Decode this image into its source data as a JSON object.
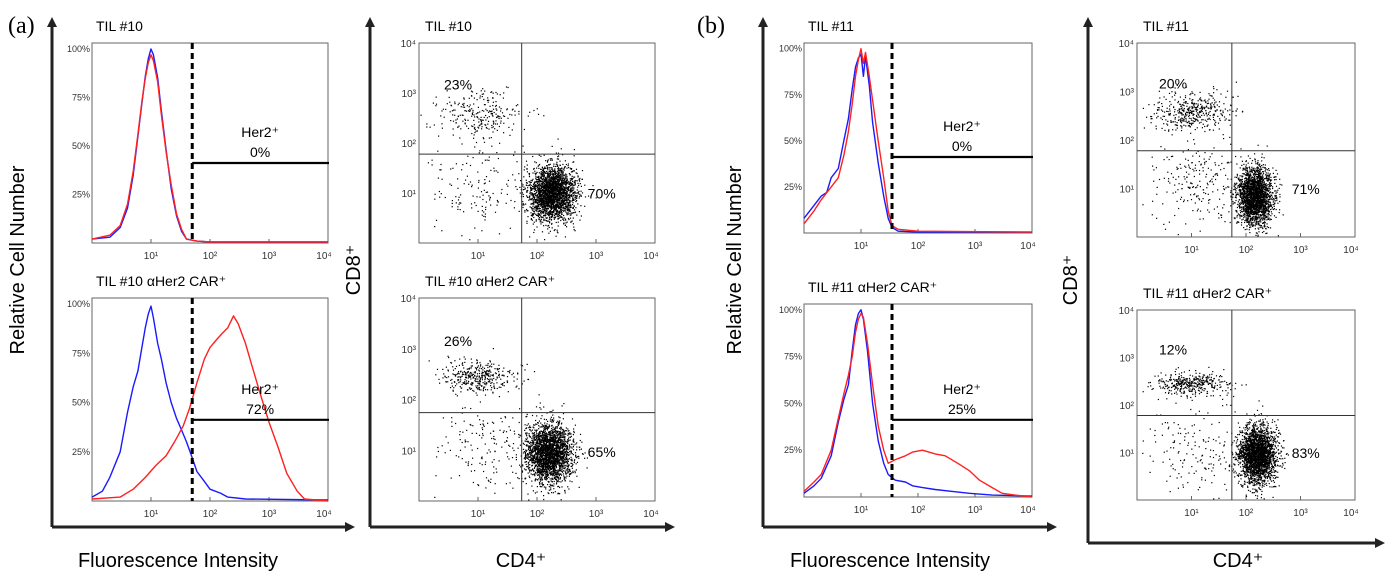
{
  "panel_labels": [
    "(a)",
    "(b)"
  ],
  "axes": {
    "hist_ylabel": "Relative Cell Number",
    "hist_xlabel": "Fluorescence Intensity",
    "dot_ylabel": "CD8⁺",
    "dot_xlabel": "CD4⁺"
  },
  "colors": {
    "control": "#1a1aff",
    "car": "#ff2020",
    "dots": "#000000",
    "gate": "#000000"
  },
  "chart_data": [
    {
      "id": "a-hist-top",
      "type": "line",
      "title": "TIL #10",
      "xscale": "log",
      "xlim": [
        1,
        10000
      ],
      "xticks": [
        "10¹",
        "10²",
        "10³",
        "10⁴"
      ],
      "yticks": [
        "25%",
        "50%",
        "75%",
        "100%"
      ],
      "gate": {
        "label": "Her2⁺",
        "value": "0%",
        "threshold": 50
      },
      "series": [
        {
          "color": "#1a1aff",
          "points": [
            [
              1,
              0.02
            ],
            [
              2,
              0.03
            ],
            [
              3,
              0.08
            ],
            [
              4,
              0.18
            ],
            [
              5,
              0.35
            ],
            [
              6,
              0.55
            ],
            [
              7,
              0.72
            ],
            [
              8,
              0.86
            ],
            [
              9,
              0.95
            ],
            [
              10,
              1.0
            ],
            [
              11,
              0.97
            ],
            [
              13,
              0.85
            ],
            [
              15,
              0.68
            ],
            [
              18,
              0.48
            ],
            [
              22,
              0.28
            ],
            [
              27,
              0.14
            ],
            [
              33,
              0.06
            ],
            [
              40,
              0.02
            ],
            [
              60,
              0.01
            ],
            [
              100,
              0.005
            ],
            [
              10000,
              0.005
            ]
          ]
        },
        {
          "color": "#ff2020",
          "points": [
            [
              1,
              0.02
            ],
            [
              2,
              0.04
            ],
            [
              3,
              0.09
            ],
            [
              4,
              0.2
            ],
            [
              5,
              0.37
            ],
            [
              6,
              0.56
            ],
            [
              7,
              0.73
            ],
            [
              8,
              0.85
            ],
            [
              9,
              0.93
            ],
            [
              10,
              0.97
            ],
            [
              11,
              0.94
            ],
            [
              13,
              0.83
            ],
            [
              15,
              0.66
            ],
            [
              18,
              0.47
            ],
            [
              22,
              0.3
            ],
            [
              27,
              0.15
            ],
            [
              33,
              0.07
            ],
            [
              40,
              0.02
            ],
            [
              60,
              0.01
            ],
            [
              100,
              0.005
            ],
            [
              10000,
              0.005
            ]
          ]
        }
      ]
    },
    {
      "id": "a-hist-bottom",
      "type": "line",
      "title": "TIL #10 αHer2 CAR⁺",
      "xscale": "log",
      "xlim": [
        1,
        10000
      ],
      "xticks": [
        "10¹",
        "10²",
        "10³",
        "10⁴"
      ],
      "yticks": [
        "25%",
        "50%",
        "75%",
        "100%"
      ],
      "gate": {
        "label": "Her2⁺",
        "value": "72%",
        "threshold": 50
      },
      "series": [
        {
          "color": "#1a1aff",
          "points": [
            [
              1,
              0.02
            ],
            [
              1.5,
              0.05
            ],
            [
              2,
              0.12
            ],
            [
              3,
              0.25
            ],
            [
              4,
              0.45
            ],
            [
              5,
              0.58
            ],
            [
              6,
              0.66
            ],
            [
              7,
              0.78
            ],
            [
              8,
              0.88
            ],
            [
              9,
              0.95
            ],
            [
              10,
              0.99
            ],
            [
              11,
              0.93
            ],
            [
              13,
              0.8
            ],
            [
              15,
              0.72
            ],
            [
              18,
              0.6
            ],
            [
              22,
              0.5
            ],
            [
              27,
              0.42
            ],
            [
              33,
              0.36
            ],
            [
              40,
              0.3
            ],
            [
              50,
              0.22
            ],
            [
              60,
              0.15
            ],
            [
              80,
              0.1
            ],
            [
              100,
              0.06
            ],
            [
              150,
              0.04
            ],
            [
              200,
              0.02
            ],
            [
              400,
              0.01
            ],
            [
              10000,
              0.005
            ]
          ]
        },
        {
          "color": "#ff2020",
          "points": [
            [
              1,
              0.01
            ],
            [
              3,
              0.02
            ],
            [
              5,
              0.06
            ],
            [
              8,
              0.12
            ],
            [
              12,
              0.18
            ],
            [
              18,
              0.23
            ],
            [
              25,
              0.3
            ],
            [
              35,
              0.38
            ],
            [
              45,
              0.47
            ],
            [
              60,
              0.6
            ],
            [
              80,
              0.72
            ],
            [
              100,
              0.78
            ],
            [
              130,
              0.82
            ],
            [
              160,
              0.85
            ],
            [
              200,
              0.88
            ],
            [
              250,
              0.94
            ],
            [
              300,
              0.9
            ],
            [
              400,
              0.8
            ],
            [
              500,
              0.7
            ],
            [
              700,
              0.55
            ],
            [
              1000,
              0.4
            ],
            [
              1400,
              0.28
            ],
            [
              2000,
              0.14
            ],
            [
              3000,
              0.05
            ],
            [
              4000,
              0.01
            ],
            [
              10000,
              0.0
            ]
          ]
        }
      ]
    },
    {
      "id": "a-dot-top",
      "type": "scatter",
      "title": "TIL #10",
      "xscale": "log",
      "yscale": "log",
      "xlim": [
        1,
        10000
      ],
      "ylim": [
        1,
        10000
      ],
      "xticks": [
        "10¹",
        "10²",
        "10³",
        "10⁴"
      ],
      "yticks": [
        "10¹",
        "10²",
        "10³",
        "10⁴"
      ],
      "gate": [
        55,
        60
      ],
      "quadrants": {
        "upper_left": "23%",
        "lower_right": "70%"
      },
      "clusters": [
        {
          "n": 260,
          "cx": 1.0,
          "cy": 2.55,
          "sx": 0.38,
          "sy": 0.25
        },
        {
          "n": 2400,
          "cx": 2.25,
          "cy": 1.0,
          "sx": 0.2,
          "sy": 0.28
        },
        {
          "n": 160,
          "cx": 1.1,
          "cy": 1.1,
          "sx": 0.45,
          "sy": 0.45
        }
      ]
    },
    {
      "id": "a-dot-bottom",
      "type": "scatter",
      "title": "TIL #10 αHer2 CAR⁺",
      "xscale": "log",
      "yscale": "log",
      "xlim": [
        1,
        10000
      ],
      "ylim": [
        1,
        10000
      ],
      "xticks": [
        "10¹",
        "10²",
        "10³",
        "10⁴"
      ],
      "yticks": [
        "10¹",
        "10²",
        "10³",
        "10⁴"
      ],
      "gate": [
        55,
        55
      ],
      "quadrants": {
        "upper_left": "26%",
        "lower_right": "65%"
      },
      "clusters": [
        {
          "n": 380,
          "cx": 1.0,
          "cy": 2.45,
          "sx": 0.32,
          "sy": 0.16
        },
        {
          "n": 2400,
          "cx": 2.2,
          "cy": 0.95,
          "sx": 0.2,
          "sy": 0.3
        },
        {
          "n": 170,
          "cx": 1.15,
          "cy": 1.0,
          "sx": 0.45,
          "sy": 0.5
        }
      ]
    },
    {
      "id": "b-hist-top",
      "type": "line",
      "title": "TIL #11",
      "xscale": "log",
      "xlim": [
        1,
        10000
      ],
      "xticks": [
        "10¹",
        "10²",
        "10³",
        "10⁴"
      ],
      "yticks": [
        "25%",
        "50%",
        "75%",
        "100%"
      ],
      "gate": {
        "label": "Her2⁺",
        "value": "0%",
        "threshold": 35
      },
      "series": [
        {
          "color": "#1a1aff",
          "points": [
            [
              1,
              0.08
            ],
            [
              1.5,
              0.15
            ],
            [
              2,
              0.2
            ],
            [
              2.5,
              0.22
            ],
            [
              3,
              0.3
            ],
            [
              4,
              0.35
            ],
            [
              5,
              0.5
            ],
            [
              6,
              0.62
            ],
            [
              7,
              0.78
            ],
            [
              8,
              0.9
            ],
            [
              9,
              0.95
            ],
            [
              10,
              0.97
            ],
            [
              11,
              0.85
            ],
            [
              12,
              0.96
            ],
            [
              14,
              0.8
            ],
            [
              16,
              0.6
            ],
            [
              20,
              0.38
            ],
            [
              25,
              0.2
            ],
            [
              30,
              0.08
            ],
            [
              35,
              0.03
            ],
            [
              45,
              0.01
            ],
            [
              100,
              0.005
            ],
            [
              10000,
              0.005
            ]
          ]
        },
        {
          "color": "#ff2020",
          "points": [
            [
              1,
              0.05
            ],
            [
              1.5,
              0.12
            ],
            [
              2,
              0.18
            ],
            [
              3,
              0.25
            ],
            [
              4,
              0.3
            ],
            [
              5,
              0.42
            ],
            [
              6,
              0.55
            ],
            [
              7,
              0.7
            ],
            [
              8,
              0.85
            ],
            [
              9,
              0.94
            ],
            [
              10,
              1.0
            ],
            [
              11,
              0.92
            ],
            [
              12,
              0.98
            ],
            [
              14,
              0.85
            ],
            [
              16,
              0.72
            ],
            [
              20,
              0.5
            ],
            [
              25,
              0.3
            ],
            [
              30,
              0.12
            ],
            [
              35,
              0.04
            ],
            [
              45,
              0.02
            ],
            [
              100,
              0.01
            ],
            [
              10000,
              0.005
            ]
          ]
        }
      ]
    },
    {
      "id": "b-hist-bottom",
      "type": "line",
      "title": "TIL #11 αHer2 CAR⁺",
      "xscale": "log",
      "xlim": [
        1,
        10000
      ],
      "xticks": [
        "10¹",
        "10²",
        "10³",
        "10⁴"
      ],
      "yticks": [
        "25%",
        "50%",
        "75%",
        "100%"
      ],
      "gate": {
        "label": "Her2⁺",
        "value": "25%",
        "threshold": 35
      },
      "series": [
        {
          "color": "#1a1aff",
          "points": [
            [
              1,
              0.02
            ],
            [
              1.5,
              0.06
            ],
            [
              2,
              0.1
            ],
            [
              3,
              0.22
            ],
            [
              4,
              0.4
            ],
            [
              5,
              0.52
            ],
            [
              6,
              0.6
            ],
            [
              7,
              0.78
            ],
            [
              8,
              0.92
            ],
            [
              9,
              0.98
            ],
            [
              10,
              1.0
            ],
            [
              11,
              0.95
            ],
            [
              13,
              0.78
            ],
            [
              16,
              0.5
            ],
            [
              20,
              0.3
            ],
            [
              25,
              0.18
            ],
            [
              30,
              0.12
            ],
            [
              40,
              0.09
            ],
            [
              60,
              0.08
            ],
            [
              80,
              0.06
            ],
            [
              120,
              0.05
            ],
            [
              200,
              0.04
            ],
            [
              400,
              0.03
            ],
            [
              800,
              0.02
            ],
            [
              2000,
              0.01
            ],
            [
              10000,
              0.005
            ]
          ]
        },
        {
          "color": "#ff2020",
          "points": [
            [
              1,
              0.03
            ],
            [
              1.5,
              0.08
            ],
            [
              2,
              0.12
            ],
            [
              3,
              0.25
            ],
            [
              4,
              0.42
            ],
            [
              5,
              0.55
            ],
            [
              6,
              0.65
            ],
            [
              7,
              0.75
            ],
            [
              8,
              0.88
            ],
            [
              9,
              0.95
            ],
            [
              10,
              0.98
            ],
            [
              11,
              0.96
            ],
            [
              13,
              0.82
            ],
            [
              16,
              0.6
            ],
            [
              20,
              0.38
            ],
            [
              25,
              0.25
            ],
            [
              30,
              0.18
            ],
            [
              40,
              0.2
            ],
            [
              60,
              0.22
            ],
            [
              80,
              0.24
            ],
            [
              120,
              0.25
            ],
            [
              200,
              0.23
            ],
            [
              300,
              0.22
            ],
            [
              500,
              0.18
            ],
            [
              800,
              0.14
            ],
            [
              1200,
              0.09
            ],
            [
              2000,
              0.05
            ],
            [
              3000,
              0.02
            ],
            [
              5000,
              0.01
            ],
            [
              10000,
              0.0
            ]
          ]
        }
      ]
    },
    {
      "id": "b-dot-top",
      "type": "scatter",
      "title": "TIL #11",
      "xscale": "log",
      "yscale": "log",
      "xlim": [
        1,
        10000
      ],
      "ylim": [
        1,
        10000
      ],
      "xticks": [
        "10¹",
        "10²",
        "10³",
        "10⁴"
      ],
      "yticks": [
        "10¹",
        "10²",
        "10³",
        "10⁴"
      ],
      "gate": [
        55,
        60
      ],
      "quadrants": {
        "upper_left": "20%",
        "lower_right": "71%"
      },
      "clusters": [
        {
          "n": 420,
          "cx": 1.0,
          "cy": 2.6,
          "sx": 0.35,
          "sy": 0.2
        },
        {
          "n": 2200,
          "cx": 2.15,
          "cy": 0.85,
          "sx": 0.16,
          "sy": 0.3
        },
        {
          "n": 220,
          "cx": 1.1,
          "cy": 1.15,
          "sx": 0.45,
          "sy": 0.5
        }
      ]
    },
    {
      "id": "b-dot-bottom",
      "type": "scatter",
      "title": "TIL #11 αHer2 CAR⁺",
      "xscale": "log",
      "yscale": "log",
      "xlim": [
        1,
        10000
      ],
      "ylim": [
        1,
        10000
      ],
      "xticks": [
        "10¹",
        "10²",
        "10³",
        "10⁴"
      ],
      "yticks": [
        "10¹",
        "10²",
        "10³",
        "10⁴"
      ],
      "gate": [
        55,
        60
      ],
      "quadrants": {
        "upper_left": "12%",
        "lower_right": "83%"
      },
      "clusters": [
        {
          "n": 380,
          "cx": 1.0,
          "cy": 2.45,
          "sx": 0.32,
          "sy": 0.12
        },
        {
          "n": 2500,
          "cx": 2.2,
          "cy": 0.95,
          "sx": 0.17,
          "sy": 0.3
        },
        {
          "n": 160,
          "cx": 1.1,
          "cy": 1.0,
          "sx": 0.45,
          "sy": 0.5
        }
      ]
    }
  ]
}
